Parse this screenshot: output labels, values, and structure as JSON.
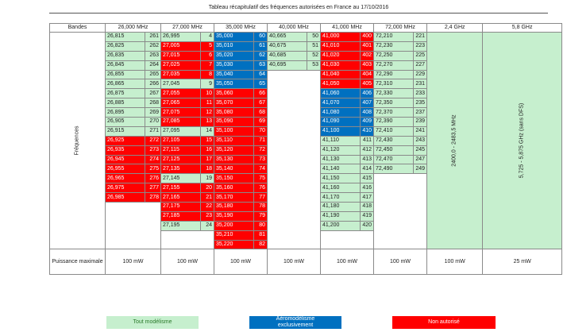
{
  "title": "Tableau récapitulatif des fréquences autorisées en France au 17/10/2016",
  "headers": [
    "Bandes",
    "26,000 MHz",
    "27,000 MHz",
    "35,000 MHz",
    "40,000 MHz",
    "41,000 MHz",
    "72,000 MHz",
    "2,4 GHz",
    "5,8 GHz"
  ],
  "row_label": "Fréquences",
  "power_label": "Puissance maximale",
  "power_values": [
    "100 mW",
    "100 mW",
    "100 mW",
    "100 mW",
    "100 mW",
    "100 mW",
    "100 mW",
    "25 mW"
  ],
  "band_2_4": "2400,0 - 2483,5 MHz",
  "band_5_8": "5,725 - 5,875 GHz (sans DFS)",
  "legend": {
    "green": "Tout modélisme",
    "blue_1": "Aéromodélisme",
    "blue_2": "exclusivement",
    "red": "Non autorisé"
  },
  "colors": {
    "green": "#c6efce",
    "red": "#ff0000",
    "blue": "#0070c0"
  },
  "bands": {
    "b26": [
      {
        "f": "26,815",
        "c": "261",
        "s": "g"
      },
      {
        "f": "26,825",
        "c": "262",
        "s": "g"
      },
      {
        "f": "26,835",
        "c": "263",
        "s": "g"
      },
      {
        "f": "26,845",
        "c": "264",
        "s": "g"
      },
      {
        "f": "26,855",
        "c": "265",
        "s": "g"
      },
      {
        "f": "26,865",
        "c": "266",
        "s": "g"
      },
      {
        "f": "26,875",
        "c": "267",
        "s": "g"
      },
      {
        "f": "26,885",
        "c": "268",
        "s": "g"
      },
      {
        "f": "26,895",
        "c": "269",
        "s": "g"
      },
      {
        "f": "26,905",
        "c": "270",
        "s": "g"
      },
      {
        "f": "26,915",
        "c": "271",
        "s": "g"
      },
      {
        "f": "26,925",
        "c": "272",
        "s": "r"
      },
      {
        "f": "26,935",
        "c": "273",
        "s": "r"
      },
      {
        "f": "26,945",
        "c": "274",
        "s": "r"
      },
      {
        "f": "26,955",
        "c": "275",
        "s": "r"
      },
      {
        "f": "26,965",
        "c": "276",
        "s": "r"
      },
      {
        "f": "26,975",
        "c": "277",
        "s": "r"
      },
      {
        "f": "26,985",
        "c": "278",
        "s": "r"
      }
    ],
    "b27": [
      {
        "f": "26,995",
        "c": "4",
        "s": "g"
      },
      {
        "f": "27,005",
        "c": "5",
        "s": "r"
      },
      {
        "f": "27,015",
        "c": "6",
        "s": "r"
      },
      {
        "f": "27,025",
        "c": "7",
        "s": "r"
      },
      {
        "f": "27,035",
        "c": "8",
        "s": "r"
      },
      {
        "f": "27,045",
        "c": "9",
        "s": "g"
      },
      {
        "f": "27,055",
        "c": "10",
        "s": "r"
      },
      {
        "f": "27,065",
        "c": "11",
        "s": "r"
      },
      {
        "f": "27,075",
        "c": "12",
        "s": "r"
      },
      {
        "f": "27,085",
        "c": "13",
        "s": "r"
      },
      {
        "f": "27,095",
        "c": "14",
        "s": "g"
      },
      {
        "f": "27,105",
        "c": "15",
        "s": "r"
      },
      {
        "f": "27,115",
        "c": "16",
        "s": "r"
      },
      {
        "f": "27,125",
        "c": "17",
        "s": "r"
      },
      {
        "f": "27,135",
        "c": "18",
        "s": "r"
      },
      {
        "f": "27,145",
        "c": "19",
        "s": "g"
      },
      {
        "f": "27,155",
        "c": "20",
        "s": "r"
      },
      {
        "f": "27,165",
        "c": "21",
        "s": "r"
      },
      {
        "f": "27,175",
        "c": "22",
        "s": "r"
      },
      {
        "f": "27,185",
        "c": "23",
        "s": "r"
      },
      {
        "f": "27,195",
        "c": "24",
        "s": "g"
      }
    ],
    "b35": [
      {
        "f": "35,000",
        "c": "60",
        "s": "b"
      },
      {
        "f": "35,010",
        "c": "61",
        "s": "b"
      },
      {
        "f": "35,020",
        "c": "62",
        "s": "b"
      },
      {
        "f": "35,030",
        "c": "63",
        "s": "b"
      },
      {
        "f": "35,040",
        "c": "64",
        "s": "b"
      },
      {
        "f": "35,050",
        "c": "65",
        "s": "b"
      },
      {
        "f": "35,060",
        "c": "66",
        "s": "r"
      },
      {
        "f": "35,070",
        "c": "67",
        "s": "r"
      },
      {
        "f": "35,080",
        "c": "68",
        "s": "r"
      },
      {
        "f": "35,090",
        "c": "69",
        "s": "r"
      },
      {
        "f": "35,100",
        "c": "70",
        "s": "r"
      },
      {
        "f": "35,110",
        "c": "71",
        "s": "r"
      },
      {
        "f": "35,120",
        "c": "72",
        "s": "r"
      },
      {
        "f": "35,130",
        "c": "73",
        "s": "r"
      },
      {
        "f": "35,140",
        "c": "74",
        "s": "r"
      },
      {
        "f": "35,150",
        "c": "75",
        "s": "r"
      },
      {
        "f": "35,160",
        "c": "76",
        "s": "r"
      },
      {
        "f": "35,170",
        "c": "77",
        "s": "r"
      },
      {
        "f": "35,180",
        "c": "78",
        "s": "r"
      },
      {
        "f": "35,190",
        "c": "79",
        "s": "r"
      },
      {
        "f": "35,200",
        "c": "80",
        "s": "r"
      },
      {
        "f": "35,210",
        "c": "81",
        "s": "r"
      },
      {
        "f": "35,220",
        "c": "82",
        "s": "r"
      }
    ],
    "b40": [
      {
        "f": "40,665",
        "c": "50",
        "s": "g"
      },
      {
        "f": "40,675",
        "c": "51",
        "s": "g"
      },
      {
        "f": "40,685",
        "c": "52",
        "s": "g"
      },
      {
        "f": "40,695",
        "c": "53",
        "s": "g"
      }
    ],
    "b41": [
      {
        "f": "41,000",
        "c": "400",
        "s": "r"
      },
      {
        "f": "41,010",
        "c": "401",
        "s": "r"
      },
      {
        "f": "41,020",
        "c": "402",
        "s": "r"
      },
      {
        "f": "41,030",
        "c": "403",
        "s": "r"
      },
      {
        "f": "41,040",
        "c": "404",
        "s": "r"
      },
      {
        "f": "41,050",
        "c": "405",
        "s": "r"
      },
      {
        "f": "41,060",
        "c": "406",
        "s": "b"
      },
      {
        "f": "41,070",
        "c": "407",
        "s": "b"
      },
      {
        "f": "41,080",
        "c": "408",
        "s": "b"
      },
      {
        "f": "41,090",
        "c": "409",
        "s": "b"
      },
      {
        "f": "41,100",
        "c": "410",
        "s": "b"
      },
      {
        "f": "41,110",
        "c": "411",
        "s": "g"
      },
      {
        "f": "41,120",
        "c": "412",
        "s": "g"
      },
      {
        "f": "41,130",
        "c": "413",
        "s": "g"
      },
      {
        "f": "41,140",
        "c": "414",
        "s": "g"
      },
      {
        "f": "41,150",
        "c": "415",
        "s": "g"
      },
      {
        "f": "41,160",
        "c": "416",
        "s": "g"
      },
      {
        "f": "41,170",
        "c": "417",
        "s": "g"
      },
      {
        "f": "41,180",
        "c": "418",
        "s": "g"
      },
      {
        "f": "41,190",
        "c": "419",
        "s": "g"
      },
      {
        "f": "41,200",
        "c": "420",
        "s": "g"
      }
    ],
    "b72": [
      {
        "f": "72,210",
        "c": "221",
        "s": "g"
      },
      {
        "f": "72,230",
        "c": "223",
        "s": "g"
      },
      {
        "f": "72,250",
        "c": "225",
        "s": "g"
      },
      {
        "f": "72,270",
        "c": "227",
        "s": "g"
      },
      {
        "f": "72,290",
        "c": "229",
        "s": "g"
      },
      {
        "f": "72,310",
        "c": "231",
        "s": "g"
      },
      {
        "f": "72,330",
        "c": "233",
        "s": "g"
      },
      {
        "f": "72,350",
        "c": "235",
        "s": "g"
      },
      {
        "f": "72,370",
        "c": "237",
        "s": "g"
      },
      {
        "f": "72,390",
        "c": "239",
        "s": "g"
      },
      {
        "f": "72,410",
        "c": "241",
        "s": "g"
      },
      {
        "f": "72,430",
        "c": "243",
        "s": "g"
      },
      {
        "f": "72,450",
        "c": "245",
        "s": "g"
      },
      {
        "f": "72,470",
        "c": "247",
        "s": "g"
      },
      {
        "f": "72,490",
        "c": "249",
        "s": "g"
      }
    ]
  }
}
